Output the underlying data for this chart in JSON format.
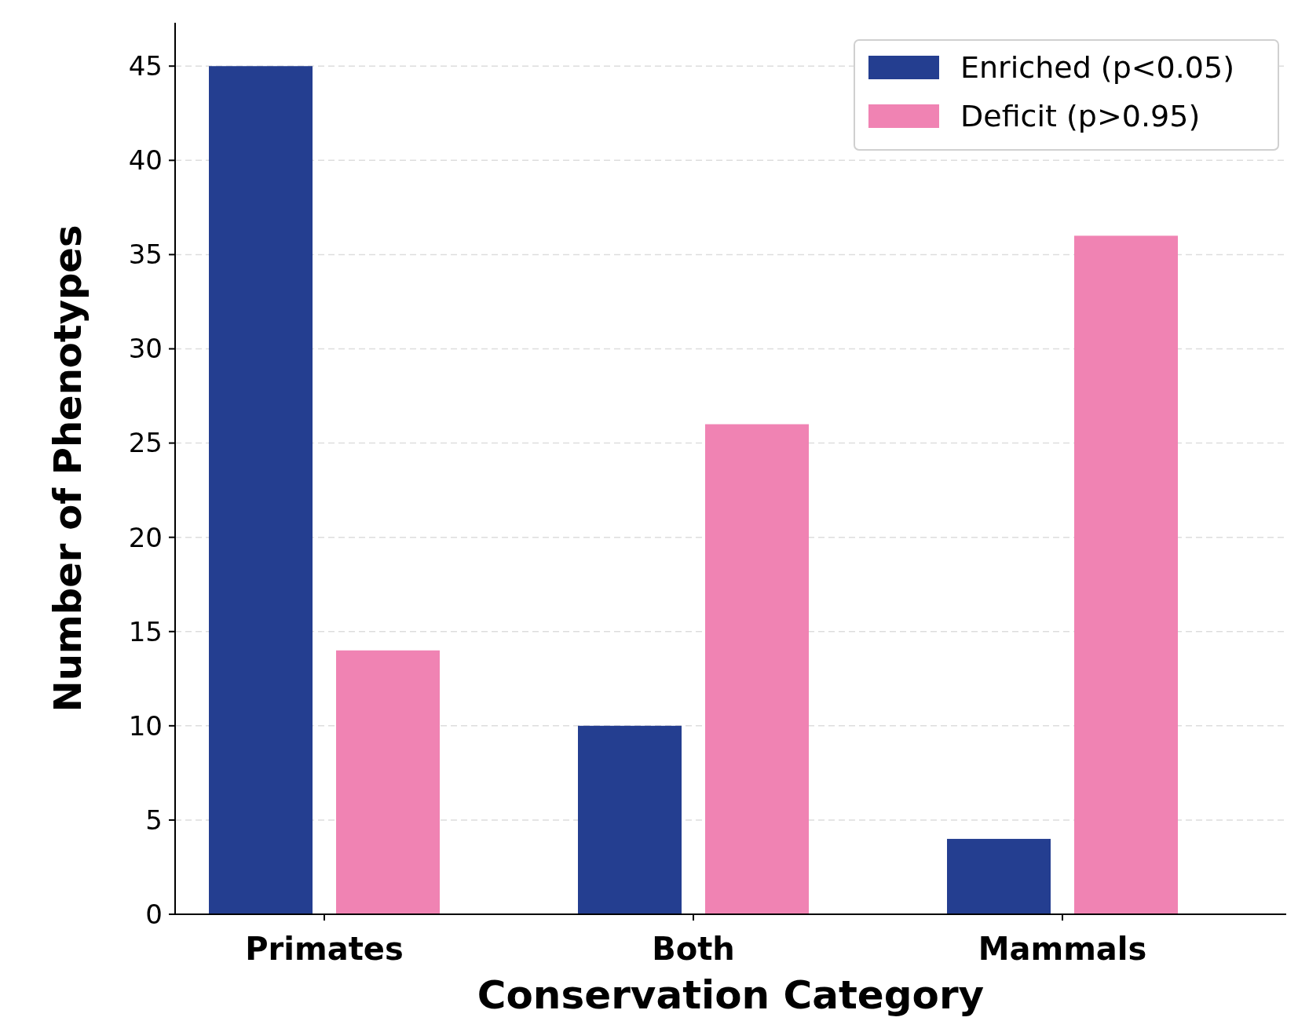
{
  "chart_data": {
    "type": "bar",
    "xlabel": "Conservation Category",
    "ylabel": "Number of Phenotypes",
    "categories": [
      "Primates",
      "Both",
      "Mammals"
    ],
    "series": [
      {
        "name": "Enriched (p<0.05)",
        "color": "#243e90",
        "values": [
          45,
          10,
          4
        ]
      },
      {
        "name": "Deficit (p>0.95)",
        "color": "#f083b3",
        "values": [
          14,
          26,
          36
        ]
      }
    ],
    "ylim": [
      0,
      47.3
    ],
    "yticks": [
      0,
      5,
      10,
      15,
      20,
      25,
      30,
      35,
      40,
      45
    ],
    "grid": "y",
    "legend": "top right"
  }
}
